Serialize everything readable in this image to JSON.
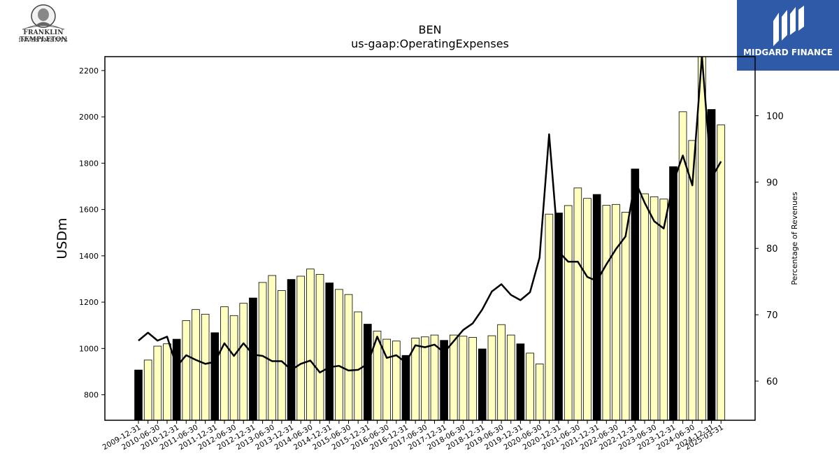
{
  "branding": {
    "left_logo": {
      "line1": "FRANKLIN TEMPLETON",
      "line2": "INVESTMENTS",
      "icon": "portrait-medallion-icon"
    },
    "right_logo": {
      "text": "MIDGARD FINANCE",
      "icon": "midgard-mark-icon",
      "background": "#2f5aa8"
    }
  },
  "chart_data": {
    "type": "bar",
    "title": "BEN",
    "subtitle": "us-gaap:OperatingExpenses",
    "ylabel": "USDm",
    "y2label": "Percentage of Revenues",
    "ylim": [
      690,
      2260
    ],
    "y2lim": [
      54.1,
      108.9
    ],
    "yticks": [
      800,
      1000,
      1200,
      1400,
      1600,
      1800,
      2000,
      2200
    ],
    "y2ticks": [
      60,
      70,
      80,
      90,
      100
    ],
    "grid": false,
    "colors": {
      "annual_bar": "#000000",
      "quarter_bar": "#ffffc0",
      "line": "#000000"
    },
    "x_labels_every": 2,
    "x": [
      "2009-12-31",
      "2010-03-31",
      "2010-06-30",
      "2010-09-30",
      "2010-12-31",
      "2011-03-31",
      "2011-06-30",
      "2011-09-30",
      "2011-12-31",
      "2012-03-31",
      "2012-06-30",
      "2012-09-30",
      "2012-12-31",
      "2013-03-31",
      "2013-06-30",
      "2013-09-30",
      "2013-12-31",
      "2014-03-31",
      "2014-06-30",
      "2014-09-30",
      "2014-12-31",
      "2015-03-31",
      "2015-06-30",
      "2015-09-30",
      "2015-12-31",
      "2016-03-31",
      "2016-06-30",
      "2016-09-30",
      "2016-12-31",
      "2017-03-31",
      "2017-06-30",
      "2017-09-30",
      "2017-12-31",
      "2018-03-31",
      "2018-06-30",
      "2018-09-30",
      "2018-12-31",
      "2019-03-31",
      "2019-06-30",
      "2019-09-30",
      "2019-12-31",
      "2020-03-31",
      "2020-06-30",
      "2020-09-30",
      "2020-12-31",
      "2021-03-31",
      "2021-06-30",
      "2021-09-30",
      "2021-12-31",
      "2022-03-31",
      "2022-06-30",
      "2022-09-30",
      "2022-12-31",
      "2023-03-31",
      "2023-06-30",
      "2023-09-30",
      "2023-12-31",
      "2024-03-31",
      "2024-06-30",
      "2024-09-30",
      "2024-12-31",
      "2025-03-31"
    ],
    "series": [
      {
        "kind": "bar",
        "axis": "left",
        "values": [
          907,
          950,
          1010,
          1020,
          1040,
          1120,
          1168,
          1148,
          1068,
          1180,
          1142,
          1195,
          1218,
          1285,
          1315,
          1250,
          1298,
          1312,
          1343,
          1320,
          1283,
          1255,
          1233,
          1158,
          1105,
          1075,
          1040,
          1032,
          970,
          1045,
          1050,
          1058,
          1035,
          1058,
          1053,
          1048,
          998,
          1055,
          1103,
          1058,
          1020,
          980,
          933,
          1580,
          1585,
          1617,
          1693,
          1648,
          1665,
          1618,
          1622,
          1588,
          1775,
          1668,
          1655,
          1645,
          1785,
          2022,
          1898,
          2265,
          2032,
          1965
        ],
        "annual": [
          true,
          false,
          false,
          false,
          true,
          false,
          false,
          false,
          true,
          false,
          false,
          false,
          true,
          false,
          false,
          false,
          true,
          false,
          false,
          false,
          true,
          false,
          false,
          false,
          true,
          false,
          false,
          false,
          true,
          false,
          false,
          false,
          true,
          false,
          false,
          false,
          true,
          false,
          false,
          false,
          true,
          false,
          false,
          false,
          true,
          false,
          false,
          false,
          true,
          false,
          false,
          false,
          true,
          false,
          false,
          false,
          true,
          false,
          false,
          false,
          true,
          false
        ]
      },
      {
        "kind": "line",
        "axis": "right",
        "values": [
          66.1,
          67.3,
          66.1,
          66.7,
          62.2,
          63.9,
          63.2,
          62.6,
          62.9,
          65.7,
          63.8,
          65.7,
          64.0,
          63.8,
          63.0,
          63.0,
          61.7,
          62.6,
          63.1,
          61.3,
          62.1,
          62.3,
          61.6,
          61.7,
          62.6,
          66.7,
          63.5,
          63.9,
          62.8,
          65.4,
          65.1,
          65.5,
          64.3,
          66.0,
          67.7,
          68.7,
          70.8,
          73.5,
          74.6,
          73.0,
          72.2,
          73.4,
          78.6,
          97.2,
          79.5,
          78.0,
          78.0,
          75.7,
          75.1,
          77.6,
          79.9,
          81.8,
          90.2,
          86.9,
          84.1,
          83.0,
          90.0,
          94.0,
          89.5,
          109.0,
          90.6,
          93.1
        ]
      }
    ]
  }
}
